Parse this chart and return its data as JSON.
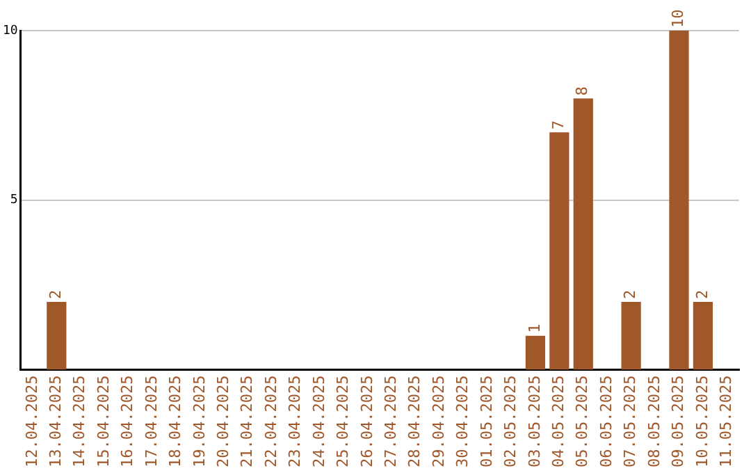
{
  "chart_data": {
    "type": "bar",
    "categories": [
      "12.04.2025",
      "13.04.2025",
      "14.04.2025",
      "15.04.2025",
      "16.04.2025",
      "17.04.2025",
      "18.04.2025",
      "19.04.2025",
      "20.04.2025",
      "21.04.2025",
      "22.04.2025",
      "23.04.2025",
      "24.04.2025",
      "25.04.2025",
      "26.04.2025",
      "27.04.2025",
      "28.04.2025",
      "29.04.2025",
      "30.04.2025",
      "01.05.2025",
      "02.05.2025",
      "03.05.2025",
      "04.05.2025",
      "05.05.2025",
      "06.05.2025",
      "07.05.2025",
      "08.05.2025",
      "09.05.2025",
      "10.05.2025",
      "11.05.2025"
    ],
    "values": [
      0,
      2,
      0,
      0,
      0,
      0,
      0,
      0,
      0,
      0,
      0,
      0,
      0,
      0,
      0,
      0,
      0,
      0,
      0,
      0,
      0,
      1,
      7,
      8,
      0,
      2,
      0,
      10,
      2,
      0
    ],
    "value_labels": [
      null,
      "2",
      null,
      null,
      null,
      null,
      null,
      null,
      null,
      null,
      null,
      null,
      null,
      null,
      null,
      null,
      null,
      null,
      null,
      null,
      null,
      "1",
      "7",
      "8",
      null,
      "2",
      null,
      "10",
      "2",
      null
    ],
    "color": "#a0582a",
    "ylim": [
      0,
      10
    ],
    "yticks": [
      5,
      10
    ],
    "grid": "y",
    "legend": false
  }
}
